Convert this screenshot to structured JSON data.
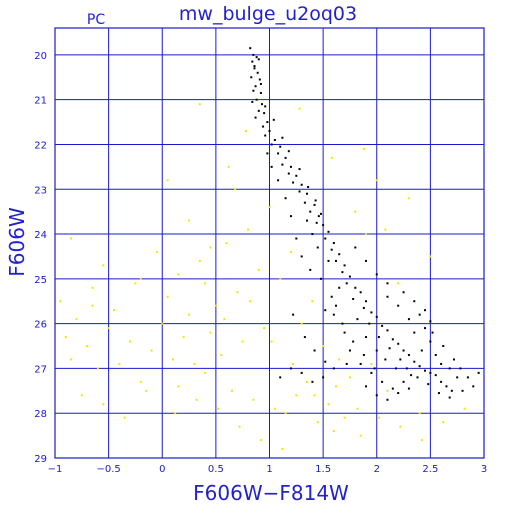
{
  "chart_data": {
    "type": "scatter",
    "title": "mw_bulge_u2oq03",
    "corner_label": "PC",
    "xlabel": "F606W−F814W",
    "ylabel": "F606W",
    "xlim": [
      -1,
      3
    ],
    "ylim": [
      29,
      19.4
    ],
    "y_axis_inverted": true,
    "grid": true,
    "x_ticks": [
      -1,
      -0.5,
      0,
      0.5,
      1,
      1.5,
      2,
      2.5,
      3
    ],
    "x_tick_labels": [
      "−1",
      "−0.5",
      "0",
      "0.5",
      "1",
      "1.5",
      "2",
      "2.5",
      "3"
    ],
    "y_ticks": [
      20,
      21,
      22,
      23,
      24,
      25,
      26,
      27,
      28,
      29
    ],
    "y_tick_labels": [
      "20",
      "21",
      "22",
      "23",
      "24",
      "25",
      "26",
      "27",
      "28",
      "29"
    ],
    "colors": {
      "frame": "#1a1acc",
      "text": "#2222cc",
      "stars_black": "#000000",
      "stars_yellow": "#f2e600"
    },
    "series": [
      {
        "color": "black",
        "points": [
          [
            0.82,
            19.85
          ],
          [
            0.85,
            20.0
          ],
          [
            0.88,
            20.05
          ],
          [
            0.84,
            20.15
          ],
          [
            0.9,
            20.1
          ],
          [
            0.86,
            20.3
          ],
          [
            0.89,
            20.4
          ],
          [
            0.83,
            20.5
          ],
          [
            0.91,
            20.55
          ],
          [
            0.87,
            20.7
          ],
          [
            0.85,
            20.8
          ],
          [
            0.92,
            20.85
          ],
          [
            0.88,
            21.0
          ],
          [
            0.84,
            21.05
          ],
          [
            0.93,
            21.1
          ],
          [
            0.9,
            21.25
          ],
          [
            0.95,
            21.3
          ],
          [
            0.87,
            21.4
          ],
          [
            0.98,
            21.5
          ],
          [
            0.94,
            21.6
          ],
          [
            1.0,
            21.7
          ],
          [
            0.96,
            21.8
          ],
          [
            1.05,
            21.9
          ],
          [
            1.02,
            22.0
          ],
          [
            1.1,
            22.05
          ],
          [
            1.08,
            22.2
          ],
          [
            1.15,
            22.3
          ],
          [
            1.12,
            22.45
          ],
          [
            1.2,
            22.5
          ],
          [
            1.18,
            22.65
          ],
          [
            1.25,
            22.7
          ],
          [
            1.22,
            22.85
          ],
          [
            1.3,
            22.9
          ],
          [
            1.28,
            23.05
          ],
          [
            1.35,
            23.1
          ],
          [
            1.33,
            23.3
          ],
          [
            1.42,
            23.35
          ],
          [
            1.38,
            23.5
          ],
          [
            1.46,
            23.6
          ],
          [
            1.44,
            23.75
          ],
          [
            1.5,
            23.8
          ],
          [
            1.55,
            23.95
          ],
          [
            1.52,
            24.1
          ],
          [
            1.6,
            24.2
          ],
          [
            1.58,
            24.35
          ],
          [
            1.65,
            24.45
          ],
          [
            1.62,
            24.6
          ],
          [
            1.7,
            24.7
          ],
          [
            1.68,
            24.85
          ],
          [
            1.75,
            24.95
          ],
          [
            1.72,
            25.1
          ],
          [
            1.8,
            25.2
          ],
          [
            1.85,
            25.3
          ],
          [
            1.78,
            25.45
          ],
          [
            1.9,
            25.5
          ],
          [
            1.88,
            25.65
          ],
          [
            1.95,
            25.75
          ],
          [
            2.0,
            25.85
          ],
          [
            1.93,
            26.0
          ],
          [
            2.05,
            26.05
          ],
          [
            2.1,
            26.15
          ],
          [
            2.02,
            26.3
          ],
          [
            2.15,
            26.35
          ],
          [
            2.2,
            26.45
          ],
          [
            2.12,
            26.55
          ],
          [
            2.25,
            26.6
          ],
          [
            2.3,
            26.7
          ],
          [
            2.22,
            26.8
          ],
          [
            2.35,
            26.85
          ],
          [
            2.4,
            26.95
          ],
          [
            2.28,
            27.0
          ],
          [
            2.45,
            27.05
          ],
          [
            2.5,
            27.1
          ],
          [
            2.38,
            27.2
          ],
          [
            2.55,
            27.15
          ],
          [
            2.6,
            27.3
          ],
          [
            2.48,
            27.35
          ],
          [
            2.65,
            27.4
          ],
          [
            2.7,
            27.5
          ],
          [
            2.75,
            27.2
          ],
          [
            1.6,
            25.8
          ],
          [
            1.7,
            26.2
          ],
          [
            1.75,
            26.6
          ],
          [
            1.85,
            26.9
          ],
          [
            1.95,
            27.1
          ],
          [
            2.05,
            27.3
          ],
          [
            2.15,
            27.45
          ],
          [
            2.25,
            27.3
          ],
          [
            1.65,
            25.2
          ],
          [
            1.82,
            25.9
          ],
          [
            1.9,
            26.3
          ],
          [
            2.0,
            26.6
          ],
          [
            2.08,
            26.8
          ],
          [
            2.18,
            27.0
          ],
          [
            2.32,
            27.15
          ],
          [
            2.42,
            26.6
          ],
          [
            2.5,
            26.4
          ],
          [
            2.55,
            26.7
          ],
          [
            2.6,
            26.9
          ],
          [
            2.68,
            27.0
          ],
          [
            2.3,
            25.9
          ],
          [
            2.2,
            25.6
          ],
          [
            2.1,
            25.4
          ],
          [
            2.35,
            26.2
          ],
          [
            2.45,
            26.1
          ],
          [
            2.4,
            25.8
          ],
          [
            2.52,
            26.2
          ],
          [
            2.62,
            26.5
          ],
          [
            2.72,
            26.8
          ],
          [
            2.78,
            27.0
          ],
          [
            1.55,
            24.6
          ],
          [
            1.45,
            24.3
          ],
          [
            1.4,
            24.0
          ],
          [
            1.35,
            23.7
          ],
          [
            1.48,
            25.0
          ],
          [
            1.58,
            25.4
          ],
          [
            1.62,
            25.6
          ],
          [
            1.3,
            24.5
          ],
          [
            1.2,
            23.6
          ],
          [
            1.15,
            23.2
          ],
          [
            1.08,
            22.8
          ],
          [
            1.02,
            22.5
          ],
          [
            0.98,
            22.2
          ],
          [
            1.25,
            24.1
          ],
          [
            1.38,
            24.8
          ],
          [
            1.52,
            25.7
          ],
          [
            1.68,
            26.0
          ],
          [
            1.78,
            26.4
          ],
          [
            1.88,
            26.7
          ],
          [
            1.98,
            27.0
          ],
          [
            1.72,
            26.9
          ],
          [
            1.6,
            27.0
          ],
          [
            1.5,
            27.2
          ],
          [
            1.4,
            27.3
          ],
          [
            1.3,
            27.1
          ],
          [
            1.2,
            27.0
          ],
          [
            1.1,
            27.2
          ],
          [
            1.9,
            27.4
          ],
          [
            2.0,
            27.6
          ],
          [
            2.1,
            27.7
          ],
          [
            2.2,
            27.55
          ],
          [
            2.3,
            27.45
          ],
          [
            1.8,
            24.3
          ],
          [
            1.9,
            24.6
          ],
          [
            2.0,
            24.9
          ],
          [
            2.1,
            25.1
          ],
          [
            2.25,
            25.3
          ],
          [
            2.35,
            25.5
          ],
          [
            2.45,
            25.7
          ],
          [
            2.5,
            25.95
          ],
          [
            0.86,
            20.25
          ],
          [
            0.92,
            20.65
          ],
          [
            0.96,
            21.15
          ],
          [
            1.04,
            21.45
          ],
          [
            1.12,
            21.85
          ],
          [
            1.18,
            22.15
          ],
          [
            1.28,
            22.55
          ],
          [
            1.36,
            22.95
          ],
          [
            1.43,
            23.25
          ],
          [
            1.48,
            23.55
          ],
          [
            2.85,
            27.2
          ],
          [
            2.9,
            27.4
          ],
          [
            2.95,
            27.1
          ],
          [
            2.8,
            27.5
          ],
          [
            2.58,
            27.55
          ],
          [
            2.68,
            27.65
          ],
          [
            1.22,
            25.8
          ],
          [
            1.33,
            26.3
          ],
          [
            1.42,
            26.6
          ],
          [
            1.52,
            26.85
          ]
        ]
      },
      {
        "color": "yellow",
        "points": [
          [
            -0.95,
            25.5
          ],
          [
            -0.9,
            26.3
          ],
          [
            -0.85,
            26.8
          ],
          [
            -0.8,
            25.9
          ],
          [
            -0.7,
            26.5
          ],
          [
            -0.65,
            25.2
          ],
          [
            -0.6,
            27.0
          ],
          [
            -0.5,
            26.1
          ],
          [
            -0.45,
            25.7
          ],
          [
            -0.4,
            26.9
          ],
          [
            -0.3,
            26.4
          ],
          [
            -0.25,
            25.1
          ],
          [
            -0.2,
            27.3
          ],
          [
            -0.1,
            26.6
          ],
          [
            0.0,
            26.0
          ],
          [
            0.05,
            25.4
          ],
          [
            0.1,
            26.8
          ],
          [
            0.15,
            27.4
          ],
          [
            0.2,
            26.3
          ],
          [
            0.25,
            25.8
          ],
          [
            0.3,
            26.9
          ],
          [
            0.35,
            24.6
          ],
          [
            0.4,
            27.1
          ],
          [
            0.45,
            26.2
          ],
          [
            0.5,
            25.6
          ],
          [
            0.55,
            26.7
          ],
          [
            0.6,
            24.2
          ],
          [
            0.65,
            27.5
          ],
          [
            0.7,
            25.3
          ],
          [
            0.75,
            26.4
          ],
          [
            0.8,
            23.9
          ],
          [
            0.85,
            27.7
          ],
          [
            0.9,
            24.8
          ],
          [
            0.95,
            26.1
          ],
          [
            1.0,
            23.4
          ],
          [
            1.05,
            27.9
          ],
          [
            1.1,
            25.0
          ],
          [
            1.15,
            28.0
          ],
          [
            1.2,
            24.4
          ],
          [
            1.25,
            27.6
          ],
          [
            1.3,
            26.0
          ],
          [
            1.35,
            27.3
          ],
          [
            1.4,
            25.5
          ],
          [
            1.45,
            28.2
          ],
          [
            1.5,
            26.5
          ],
          [
            1.55,
            27.8
          ],
          [
            1.6,
            28.4
          ],
          [
            1.65,
            26.8
          ],
          [
            1.7,
            28.1
          ],
          [
            1.75,
            27.2
          ],
          [
            1.8,
            23.5
          ],
          [
            1.85,
            28.5
          ],
          [
            1.9,
            24.0
          ],
          [
            1.95,
            26.9
          ],
          [
            2.0,
            22.8
          ],
          [
            2.1,
            27.5
          ],
          [
            2.2,
            25.1
          ],
          [
            2.3,
            23.2
          ],
          [
            2.4,
            28.0
          ],
          [
            2.5,
            24.5
          ],
          [
            -0.75,
            27.6
          ],
          [
            -0.55,
            27.8
          ],
          [
            -0.35,
            28.1
          ],
          [
            -0.15,
            27.5
          ],
          [
            0.12,
            28.0
          ],
          [
            0.32,
            27.7
          ],
          [
            0.52,
            27.9
          ],
          [
            0.72,
            28.3
          ],
          [
            0.92,
            28.6
          ],
          [
            1.12,
            28.8
          ],
          [
            0.05,
            22.8
          ],
          [
            0.25,
            23.7
          ],
          [
            0.45,
            24.3
          ],
          [
            0.62,
            22.5
          ],
          [
            0.78,
            21.7
          ],
          [
            0.68,
            23.0
          ],
          [
            0.15,
            24.9
          ],
          [
            -0.05,
            24.4
          ],
          [
            -0.2,
            25.0
          ],
          [
            -0.55,
            24.7
          ],
          [
            -0.85,
            24.1
          ],
          [
            -0.65,
            25.6
          ],
          [
            0.4,
            25.1
          ],
          [
            0.58,
            25.9
          ],
          [
            0.82,
            25.5
          ],
          [
            1.02,
            26.4
          ],
          [
            1.22,
            26.9
          ],
          [
            1.42,
            27.6
          ],
          [
            1.62,
            27.4
          ],
          [
            1.82,
            27.9
          ],
          [
            2.02,
            28.1
          ],
          [
            2.22,
            28.3
          ],
          [
            2.42,
            28.6
          ],
          [
            2.62,
            28.2
          ],
          [
            2.82,
            27.9
          ],
          [
            1.28,
            21.2
          ],
          [
            1.58,
            22.3
          ],
          [
            1.88,
            22.1
          ],
          [
            2.08,
            23.9
          ],
          [
            0.35,
            21.1
          ]
        ]
      }
    ]
  }
}
